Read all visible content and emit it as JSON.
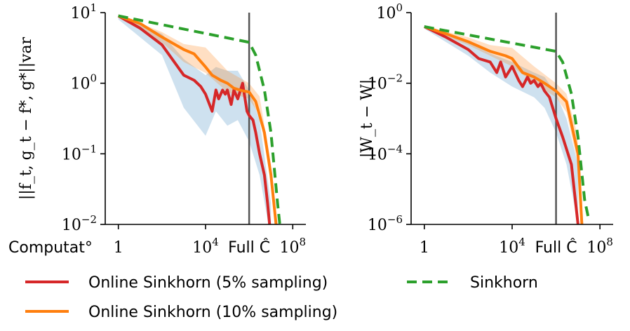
{
  "chart_data": [
    {
      "type": "line",
      "ylabel": "||f_t, g_t − f*, g*||var",
      "y_scale": "log",
      "x_scale": "log",
      "ylim": [
        0.01,
        10
      ],
      "xlim": [
        0.25,
        400000000.0
      ],
      "y_ticks": [
        {
          "value": 10,
          "label": "10",
          "exp": "1"
        },
        {
          "value": 1,
          "label": "10",
          "exp": "0"
        },
        {
          "value": 0.1,
          "label": "10",
          "exp": "−1"
        },
        {
          "value": 0.01,
          "label": "10",
          "exp": "−2"
        }
      ],
      "x_ticks": [
        {
          "value": 1,
          "label": "1",
          "exp": ""
        },
        {
          "value": 10000,
          "label": "10",
          "exp": "4"
        },
        {
          "value": 100000000,
          "label": "10",
          "exp": "8"
        }
      ],
      "extra_x_labels": [
        {
          "value": 0.003,
          "label": "Computat°"
        },
        {
          "value": 1000000,
          "label": "Full Ĉ"
        }
      ],
      "vline_x": 1000000,
      "series": [
        {
          "name": "Online Sinkhorn (5% sampling)",
          "color": "#d62728",
          "dash": "solid",
          "x": [
            1,
            10,
            100,
            1000,
            3000,
            6000,
            10000,
            20000,
            30000,
            40000,
            60000,
            80000,
            100000,
            150000,
            200000,
            300000,
            500000,
            800000,
            1000000,
            1500000,
            2000000,
            3000000,
            5000000,
            7000000,
            10000000
          ],
          "y": [
            9,
            6,
            3.5,
            1.3,
            1.1,
            0.9,
            0.7,
            0.4,
            0.8,
            0.6,
            0.8,
            0.7,
            0.8,
            0.5,
            0.8,
            0.6,
            1.0,
            0.4,
            0.35,
            0.3,
            0.2,
            0.1,
            0.05,
            0.02,
            0.005
          ]
        },
        {
          "name": "Online Sinkhorn (10% sampling)",
          "color": "#ff7f0e",
          "dash": "solid",
          "x": [
            1,
            10,
            100,
            1000,
            3000,
            10000,
            20000,
            50000,
            100000,
            200000,
            500000,
            1000000,
            2000000,
            5000000,
            10000000,
            20000000
          ],
          "y": [
            9,
            7,
            4.5,
            3.0,
            2.6,
            1.7,
            1.3,
            1.1,
            1.0,
            0.85,
            0.78,
            0.75,
            0.55,
            0.2,
            0.05,
            0.005
          ]
        },
        {
          "name": "Sinkhorn",
          "color": "#2ca02c",
          "dash": "dashed",
          "x": [
            1,
            1000000,
            2000000,
            5000000,
            10000000,
            20000000,
            30000000
          ],
          "y": [
            9,
            3.8,
            2.5,
            0.8,
            0.2,
            0.02,
            0.005
          ]
        }
      ],
      "bands": [
        {
          "color": "#1f77b4",
          "opacity": 0.22,
          "x": [
            1,
            100,
            1000,
            10000,
            30000,
            100000,
            300000,
            1000000,
            3000000,
            10000000
          ],
          "y_low": [
            8,
            2.5,
            0.45,
            0.18,
            0.4,
            0.25,
            0.3,
            0.15,
            0.05,
            0.004
          ],
          "y_high": [
            9.5,
            5,
            2.2,
            1.3,
            1.7,
            1.5,
            1.5,
            0.8,
            0.3,
            0.02
          ]
        },
        {
          "color": "#ff7f0e",
          "opacity": 0.25,
          "x": [
            1,
            100,
            1000,
            10000,
            100000,
            1000000,
            3000000,
            10000000
          ],
          "y_low": [
            8.5,
            3.8,
            2.0,
            1.4,
            0.75,
            0.6,
            0.35,
            0.04
          ],
          "y_high": [
            9.5,
            5.3,
            3.6,
            3.2,
            1.5,
            1.0,
            0.65,
            0.07
          ]
        }
      ]
    },
    {
      "type": "line",
      "ylabel": "|W_t − W|",
      "y_scale": "log",
      "x_scale": "log",
      "ylim": [
        1e-06,
        1
      ],
      "xlim": [
        0.25,
        400000000.0
      ],
      "y_ticks": [
        {
          "value": 1,
          "label": "10",
          "exp": "0"
        },
        {
          "value": 0.01,
          "label": "10",
          "exp": "−2"
        },
        {
          "value": 0.0001,
          "label": "10",
          "exp": "−4"
        },
        {
          "value": 1e-06,
          "label": "10",
          "exp": "−6"
        }
      ],
      "x_ticks": [
        {
          "value": 1,
          "label": "1",
          "exp": ""
        },
        {
          "value": 10000,
          "label": "10",
          "exp": "4"
        },
        {
          "value": 100000000,
          "label": "10",
          "exp": "8"
        }
      ],
      "extra_x_labels": [
        {
          "value": 1000000,
          "label": "Full Ĉ"
        }
      ],
      "vline_x": 1000000,
      "series": [
        {
          "name": "Online Sinkhorn (5% sampling)",
          "color": "#d62728",
          "dash": "solid",
          "x": [
            1,
            10,
            100,
            300,
            1000,
            2000,
            3000,
            5000,
            10000,
            20000,
            30000,
            50000,
            70000,
            100000,
            150000,
            200000,
            300000,
            500000,
            1000000,
            2000000,
            5000000,
            10000000
          ],
          "y": [
            0.4,
            0.2,
            0.09,
            0.05,
            0.04,
            0.02,
            0.04,
            0.015,
            0.03,
            0.012,
            0.008,
            0.015,
            0.01,
            0.012,
            0.008,
            0.01,
            0.006,
            0.004,
            0.001,
            0.0003,
            5e-05,
            1e-06
          ]
        },
        {
          "name": "Online Sinkhorn (10% sampling)",
          "color": "#ff7f0e",
          "dash": "solid",
          "x": [
            1,
            10,
            100,
            1000,
            5000,
            10000,
            30000,
            100000,
            300000,
            1000000,
            3000000,
            10000000,
            15000000
          ],
          "y": [
            0.4,
            0.25,
            0.15,
            0.08,
            0.06,
            0.05,
            0.02,
            0.015,
            0.01,
            0.006,
            0.003,
            0.0001,
            1e-06
          ]
        },
        {
          "name": "Sinkhorn",
          "color": "#2ca02c",
          "dash": "dashed",
          "x": [
            1,
            1000000,
            2000000,
            5000000,
            10000000,
            20000000,
            30000000
          ],
          "y": [
            0.4,
            0.08,
            0.04,
            0.005,
            0.0003,
            5e-06,
            1.5e-06
          ]
        }
      ],
      "bands": [
        {
          "color": "#1f77b4",
          "opacity": 0.22,
          "x": [
            1,
            100,
            1000,
            10000,
            100000,
            300000,
            1000000,
            3000000,
            10000000
          ],
          "y_low": [
            0.35,
            0.06,
            0.02,
            0.008,
            0.004,
            0.002,
            0.0004,
            5e-05,
            1e-06
          ],
          "y_high": [
            0.45,
            0.15,
            0.07,
            0.04,
            0.02,
            0.015,
            0.005,
            0.001,
            5e-05
          ]
        },
        {
          "color": "#ff7f0e",
          "opacity": 0.25,
          "x": [
            1,
            100,
            1000,
            10000,
            100000,
            1000000,
            3000000,
            10000000
          ],
          "y_low": [
            0.38,
            0.12,
            0.06,
            0.03,
            0.01,
            0.004,
            0.0015,
            5e-05
          ],
          "y_high": [
            0.42,
            0.2,
            0.12,
            0.1,
            0.03,
            0.01,
            0.005,
            0.0003
          ]
        }
      ]
    }
  ],
  "legend": {
    "placement": "bottom",
    "entries": [
      {
        "label": "Online Sinkhorn (5% sampling)",
        "color": "#d62728",
        "dash": "solid"
      },
      {
        "label": "Sinkhorn",
        "color": "#2ca02c",
        "dash": "dashed"
      },
      {
        "label": "Online Sinkhorn (10% sampling)",
        "color": "#ff7f0e",
        "dash": "solid"
      }
    ]
  },
  "colors": {
    "vline": "#555555",
    "axis": "#000000"
  }
}
